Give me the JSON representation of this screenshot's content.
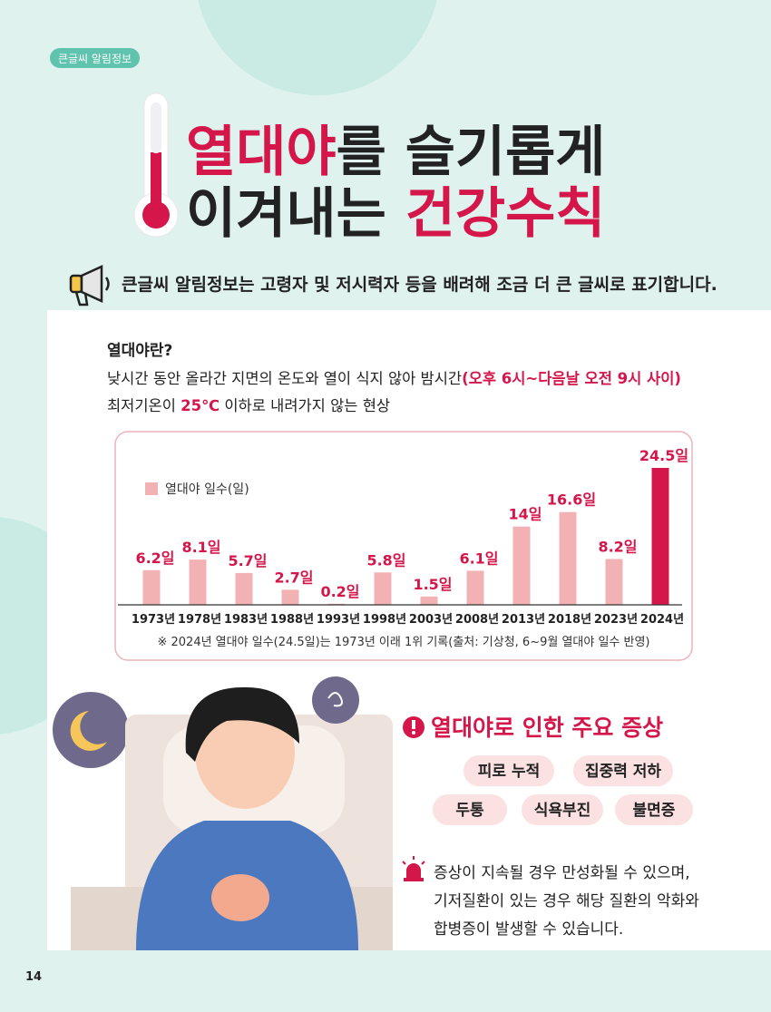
{
  "badge": "큰글씨 알림정보",
  "title": {
    "lines": [
      [
        {
          "text": "열대야",
          "highlight": true
        },
        {
          "text": "를 슬기롭게",
          "highlight": false
        }
      ],
      [
        {
          "text": "이겨내는 ",
          "highlight": false
        },
        {
          "text": "건강수칙",
          "highlight": true
        }
      ]
    ]
  },
  "notice": "큰글씨 알림정보는 고령자 및 저시력자 등을 배려해 조금 더 큰 글씨로 표기합니다.",
  "definition": {
    "heading": "열대야란?",
    "lines": [
      [
        {
          "text": "낮시간 동안 올라간 지면의 온도와 열이 식지 않아 밤시간",
          "highlight": false
        },
        {
          "text": "(오후 6시~다음날 오전 9시 사이)",
          "highlight": true
        }
      ],
      [
        {
          "text": "최저기온이 ",
          "highlight": false
        },
        {
          "text": "25℃",
          "highlight": true
        },
        {
          "text": " 이하로 내려가지 않는 현상",
          "highlight": false
        }
      ]
    ]
  },
  "chart_data": {
    "type": "bar",
    "legend": "열대야 일수(일)",
    "categories": [
      "1973년",
      "1978년",
      "1983년",
      "1988년",
      "1993년",
      "1998년",
      "2003년",
      "2008년",
      "2013년",
      "2018년",
      "2023년",
      "2024년"
    ],
    "values": [
      6.2,
      8.1,
      5.7,
      2.7,
      0.2,
      5.8,
      1.5,
      6.1,
      14,
      16.6,
      8.2,
      24.5
    ],
    "value_labels": [
      "6.2일",
      "8.1일",
      "5.7일",
      "2.7일",
      "0.2일",
      "5.8일",
      "1.5일",
      "6.1일",
      "14일",
      "16.6일",
      "8.2일",
      "24.5일"
    ],
    "colors": [
      "#f2b2b4",
      "#f2b2b4",
      "#f2b2b4",
      "#f2b2b4",
      "#f2b2b4",
      "#f2b2b4",
      "#f2b2b4",
      "#f2b2b4",
      "#f2b2b4",
      "#f2b2b4",
      "#f2b2b4",
      "#d4164a"
    ],
    "note": "※ 2024년 열대야 일수(24.5일)는 1973년 이래 1위 기록(출처: 기상청, 6~9월 열대야 일수 반영)"
  },
  "symptoms": {
    "heading": "열대야로 인한 주요 증상",
    "tags": [
      "피로 누적",
      "집중력 저하",
      "두통",
      "식욕부진",
      "불면증"
    ],
    "warning": [
      "증상이 지속될 경우 만성화될 수 있으며,",
      "기저질환이 있는 경우 해당 질환의 악화와",
      "합병증이 발생할 수 있습니다."
    ]
  },
  "page_number": "14"
}
